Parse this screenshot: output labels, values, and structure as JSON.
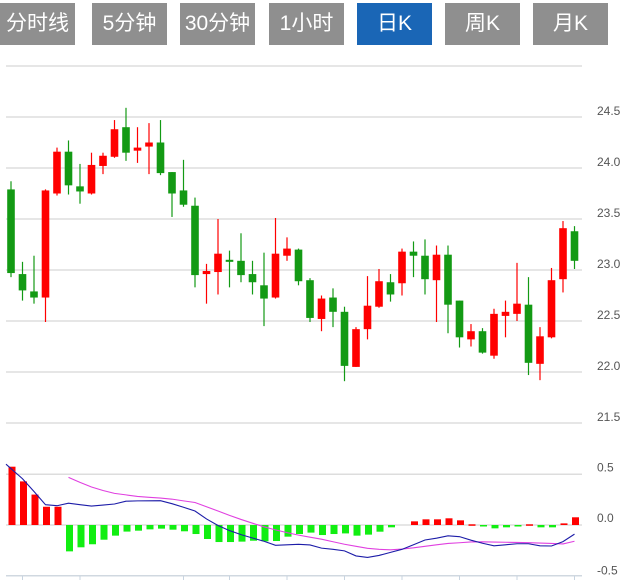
{
  "tabs": [
    {
      "label": "分时线",
      "active": false
    },
    {
      "label": "5分钟",
      "active": false
    },
    {
      "label": "30分钟",
      "active": false
    },
    {
      "label": "1小时",
      "active": false
    },
    {
      "label": "日K",
      "active": true
    },
    {
      "label": "周K",
      "active": false
    },
    {
      "label": "月K",
      "active": false
    }
  ],
  "colors": {
    "up": "#ff0000",
    "down": "#139a14",
    "macd_up": "#ff0000",
    "macd_down": "#11ee11",
    "dif": "#1c1ca8",
    "dea": "#e040e0",
    "tab_active": "#1a66b6",
    "tab": "#8f8f8f",
    "grid": "#dddddd"
  },
  "chart_data": [
    {
      "type": "candlestick",
      "title": "",
      "ylim": [
        21.5,
        25.0
      ],
      "y_ticks": [
        "24.5",
        "24.0",
        "23.5",
        "23.0",
        "22.5",
        "22.0",
        "21.5"
      ],
      "y_tick_values": [
        24.5,
        24.0,
        23.5,
        23.0,
        22.5,
        22.0,
        21.5
      ],
      "grid": true,
      "ohlc": [
        [
          23.79,
          23.87,
          22.93,
          22.97
        ],
        [
          22.96,
          23.08,
          22.7,
          22.8
        ],
        [
          22.79,
          23.14,
          22.67,
          22.73
        ],
        [
          22.73,
          23.79,
          22.49,
          23.78
        ],
        [
          23.75,
          24.2,
          23.73,
          24.16
        ],
        [
          24.16,
          24.27,
          23.74,
          23.83
        ],
        [
          23.82,
          24.04,
          23.65,
          23.77
        ],
        [
          23.75,
          24.15,
          23.74,
          24.03
        ],
        [
          24.02,
          24.15,
          23.94,
          24.12
        ],
        [
          24.11,
          24.47,
          24.1,
          24.38
        ],
        [
          24.4,
          24.59,
          24.07,
          24.15
        ],
        [
          24.17,
          24.4,
          24.05,
          24.2
        ],
        [
          24.21,
          24.44,
          23.94,
          24.25
        ],
        [
          24.25,
          24.47,
          23.93,
          23.95
        ],
        [
          23.96,
          23.96,
          23.52,
          23.75
        ],
        [
          23.78,
          24.08,
          23.62,
          23.64
        ],
        [
          23.63,
          23.71,
          22.83,
          22.95
        ],
        [
          22.96,
          23.06,
          22.67,
          22.99
        ],
        [
          22.98,
          23.5,
          22.76,
          23.16
        ],
        [
          23.1,
          23.19,
          22.83,
          23.08
        ],
        [
          23.09,
          23.36,
          22.88,
          22.95
        ],
        [
          22.96,
          23.09,
          22.76,
          22.88
        ],
        [
          22.85,
          23.17,
          22.45,
          22.72
        ],
        [
          22.73,
          23.51,
          22.72,
          23.16
        ],
        [
          23.14,
          23.32,
          23.09,
          23.21
        ],
        [
          23.2,
          23.21,
          22.85,
          22.89
        ],
        [
          22.9,
          22.92,
          22.49,
          22.53
        ],
        [
          22.52,
          22.75,
          22.4,
          22.72
        ],
        [
          22.73,
          22.82,
          22.44,
          22.59
        ],
        [
          22.59,
          22.64,
          21.91,
          22.06
        ],
        [
          22.05,
          22.44,
          22.05,
          22.42
        ],
        [
          22.42,
          22.94,
          22.32,
          22.65
        ],
        [
          22.64,
          23.01,
          22.63,
          22.89
        ],
        [
          22.88,
          22.96,
          22.69,
          22.76
        ],
        [
          22.87,
          23.21,
          22.75,
          23.18
        ],
        [
          23.18,
          23.28,
          22.93,
          23.14
        ],
        [
          23.14,
          23.3,
          22.76,
          22.91
        ],
        [
          22.9,
          23.24,
          22.49,
          23.15
        ],
        [
          23.15,
          23.24,
          22.38,
          22.66
        ],
        [
          22.7,
          22.7,
          22.24,
          22.34
        ],
        [
          22.32,
          22.47,
          22.25,
          22.4
        ],
        [
          22.4,
          22.43,
          22.18,
          22.19
        ],
        [
          22.16,
          22.62,
          22.13,
          22.57
        ],
        [
          22.55,
          22.7,
          22.34,
          22.59
        ],
        [
          22.57,
          23.07,
          22.5,
          22.67
        ],
        [
          22.66,
          22.93,
          21.97,
          22.09
        ],
        [
          22.08,
          22.44,
          21.92,
          22.35
        ],
        [
          22.34,
          23.02,
          22.33,
          22.9
        ],
        [
          22.91,
          23.48,
          22.78,
          23.41
        ],
        [
          23.38,
          23.43,
          23.01,
          23.09
        ]
      ]
    },
    {
      "type": "macd",
      "ylim": [
        -0.5,
        0.5
      ],
      "y_ticks": [
        "0.5",
        "0.0",
        "-0.5"
      ],
      "y_tick_values": [
        0.5,
        0.0,
        -0.5
      ],
      "x_tick_indices": [
        1,
        6,
        15,
        19,
        24,
        29,
        34,
        39,
        44,
        49
      ],
      "macd": [
        0.575,
        0.43,
        0.3,
        0.18,
        0.18,
        -0.26,
        -0.22,
        -0.19,
        -0.145,
        -0.105,
        -0.065,
        -0.056,
        -0.043,
        -0.036,
        -0.046,
        -0.062,
        -0.089,
        -0.138,
        -0.168,
        -0.168,
        -0.164,
        -0.155,
        -0.161,
        -0.158,
        -0.115,
        -0.089,
        -0.075,
        -0.099,
        -0.089,
        -0.083,
        -0.105,
        -0.095,
        -0.066,
        -0.023,
        0,
        0.036,
        0.056,
        0.056,
        0.066,
        0.046,
        0.007,
        -0.007,
        -0.033,
        -0.023,
        -0.013,
        0.007,
        -0.023,
        -0.023,
        0.016,
        0.076
      ],
      "dif": [
        0.6,
        0.456,
        0.33,
        0.2,
        0.19,
        0.215,
        0.2,
        0.187,
        0.197,
        0.207,
        0.235,
        0.238,
        0.239,
        0.24,
        0.21,
        0.175,
        0.138,
        0.06,
        -0.005,
        -0.055,
        -0.095,
        -0.128,
        -0.16,
        -0.2,
        -0.195,
        -0.19,
        -0.197,
        -0.228,
        -0.24,
        -0.255,
        -0.305,
        -0.32,
        -0.3,
        -0.27,
        -0.24,
        -0.195,
        -0.148,
        -0.13,
        -0.107,
        -0.115,
        -0.15,
        -0.18,
        -0.205,
        -0.195,
        -0.185,
        -0.185,
        -0.205,
        -0.207,
        -0.164,
        -0.09
      ],
      "dea": [
        null,
        null,
        null,
        null,
        null,
        0.47,
        0.42,
        0.375,
        0.34,
        0.312,
        0.297,
        0.282,
        0.273,
        0.266,
        0.255,
        0.238,
        0.222,
        0.18,
        0.138,
        0.095,
        0.055,
        0.018,
        -0.018,
        -0.048,
        -0.075,
        -0.1,
        -0.12,
        -0.14,
        -0.165,
        -0.19,
        -0.21,
        -0.23,
        -0.24,
        -0.245,
        -0.237,
        -0.225,
        -0.21,
        -0.195,
        -0.182,
        -0.175,
        -0.167,
        -0.166,
        -0.168,
        -0.17,
        -0.172,
        -0.174,
        -0.178,
        -0.182,
        -0.187,
        -0.16
      ]
    }
  ]
}
